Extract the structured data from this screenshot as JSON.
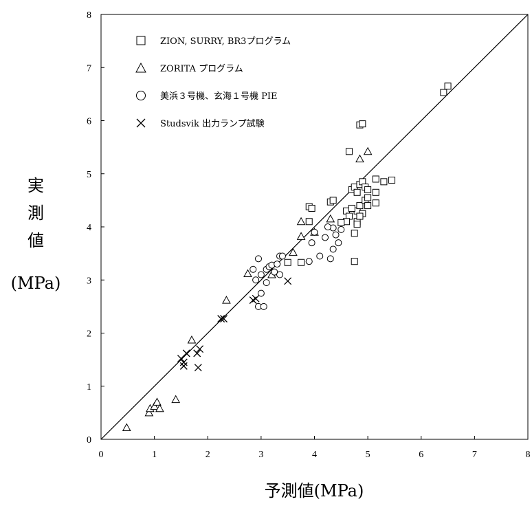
{
  "chart_data": {
    "type": "scatter",
    "title": "",
    "xlabel": "予測値(MPa)",
    "ylabel_chars": [
      "実",
      "測",
      "値"
    ],
    "ylabel_unit": "(MPa)",
    "xlim": [
      0,
      8
    ],
    "ylim": [
      0,
      8
    ],
    "xticks": [
      "0",
      "1",
      "2",
      "3",
      "4",
      "5",
      "6",
      "7",
      "8"
    ],
    "yticks": [
      "0",
      "1",
      "2",
      "3",
      "4",
      "5",
      "6",
      "7",
      "8"
    ],
    "grid": false,
    "legend_position": "top-left",
    "reference_line": {
      "from": [
        0,
        0
      ],
      "to": [
        8,
        8
      ]
    },
    "series": [
      {
        "name": "ZION, SURRY, BR3プログラム",
        "marker": "square",
        "points": [
          [
            3.9,
            4.38
          ],
          [
            3.95,
            4.35
          ],
          [
            4.3,
            4.47
          ],
          [
            4.35,
            4.5
          ],
          [
            3.75,
            3.33
          ],
          [
            3.9,
            4.1
          ],
          [
            4.6,
            4.3
          ],
          [
            4.65,
            4.2
          ],
          [
            4.7,
            4.7
          ],
          [
            4.75,
            4.75
          ],
          [
            4.8,
            4.65
          ],
          [
            4.85,
            4.8
          ],
          [
            4.9,
            4.85
          ],
          [
            4.95,
            4.75
          ],
          [
            5.0,
            4.7
          ],
          [
            4.8,
            4.3
          ],
          [
            4.85,
            4.4
          ],
          [
            4.9,
            4.25
          ],
          [
            4.95,
            4.5
          ],
          [
            5.0,
            4.55
          ],
          [
            4.8,
            4.1
          ],
          [
            4.75,
            3.88
          ],
          [
            4.6,
            4.1
          ],
          [
            4.7,
            4.35
          ],
          [
            4.85,
            4.2
          ],
          [
            5.15,
            4.9
          ],
          [
            5.15,
            4.65
          ],
          [
            5.15,
            4.45
          ],
          [
            5.3,
            4.85
          ],
          [
            5.45,
            4.88
          ],
          [
            4.85,
            5.92
          ],
          [
            4.9,
            5.94
          ],
          [
            4.65,
            5.42
          ],
          [
            6.42,
            6.53
          ],
          [
            6.5,
            6.65
          ],
          [
            4.75,
            3.35
          ],
          [
            3.5,
            3.33
          ],
          [
            4.5,
            4.08
          ],
          [
            4.8,
            4.05
          ],
          [
            5.0,
            4.4
          ]
        ]
      },
      {
        "name": "ZORITA プログラム",
        "marker": "triangle",
        "points": [
          [
            0.48,
            0.22
          ],
          [
            0.9,
            0.5
          ],
          [
            0.92,
            0.58
          ],
          [
            1.0,
            0.62
          ],
          [
            1.05,
            0.7
          ],
          [
            1.1,
            0.58
          ],
          [
            1.4,
            0.75
          ],
          [
            1.7,
            1.87
          ],
          [
            2.35,
            2.62
          ],
          [
            2.75,
            3.12
          ],
          [
            3.2,
            3.1
          ],
          [
            3.6,
            3.52
          ],
          [
            3.75,
            3.82
          ],
          [
            3.75,
            4.1
          ],
          [
            4.0,
            3.9
          ],
          [
            4.3,
            4.15
          ],
          [
            4.85,
            5.28
          ],
          [
            5.0,
            5.42
          ]
        ]
      },
      {
        "name": "美浜３号機、玄海１号機 PIE",
        "marker": "circle",
        "points": [
          [
            2.85,
            3.2
          ],
          [
            2.9,
            3.0
          ],
          [
            2.95,
            3.4
          ],
          [
            2.95,
            2.5
          ],
          [
            3.0,
            3.1
          ],
          [
            3.0,
            2.75
          ],
          [
            3.05,
            2.5
          ],
          [
            3.1,
            3.2
          ],
          [
            3.15,
            3.25
          ],
          [
            3.2,
            3.28
          ],
          [
            3.25,
            3.15
          ],
          [
            3.3,
            3.3
          ],
          [
            3.35,
            3.45
          ],
          [
            3.4,
            3.45
          ],
          [
            3.1,
            2.95
          ],
          [
            3.35,
            3.1
          ],
          [
            3.9,
            3.35
          ],
          [
            3.95,
            3.7
          ],
          [
            4.0,
            3.9
          ],
          [
            4.1,
            3.45
          ],
          [
            4.2,
            3.8
          ],
          [
            4.3,
            3.4
          ],
          [
            4.35,
            3.58
          ],
          [
            4.45,
            3.7
          ],
          [
            4.4,
            3.85
          ],
          [
            4.5,
            3.95
          ],
          [
            4.35,
            3.98
          ],
          [
            4.25,
            4.0
          ]
        ]
      },
      {
        "name": "Studsvik 出力ランプ試験",
        "marker": "cross",
        "points": [
          [
            1.5,
            1.52
          ],
          [
            1.55,
            1.45
          ],
          [
            1.55,
            1.38
          ],
          [
            1.6,
            1.62
          ],
          [
            1.8,
            1.62
          ],
          [
            1.85,
            1.7
          ],
          [
            1.82,
            1.35
          ],
          [
            2.25,
            2.27
          ],
          [
            2.3,
            2.27
          ],
          [
            2.85,
            2.62
          ],
          [
            2.9,
            2.65
          ],
          [
            3.5,
            2.98
          ]
        ]
      }
    ]
  }
}
